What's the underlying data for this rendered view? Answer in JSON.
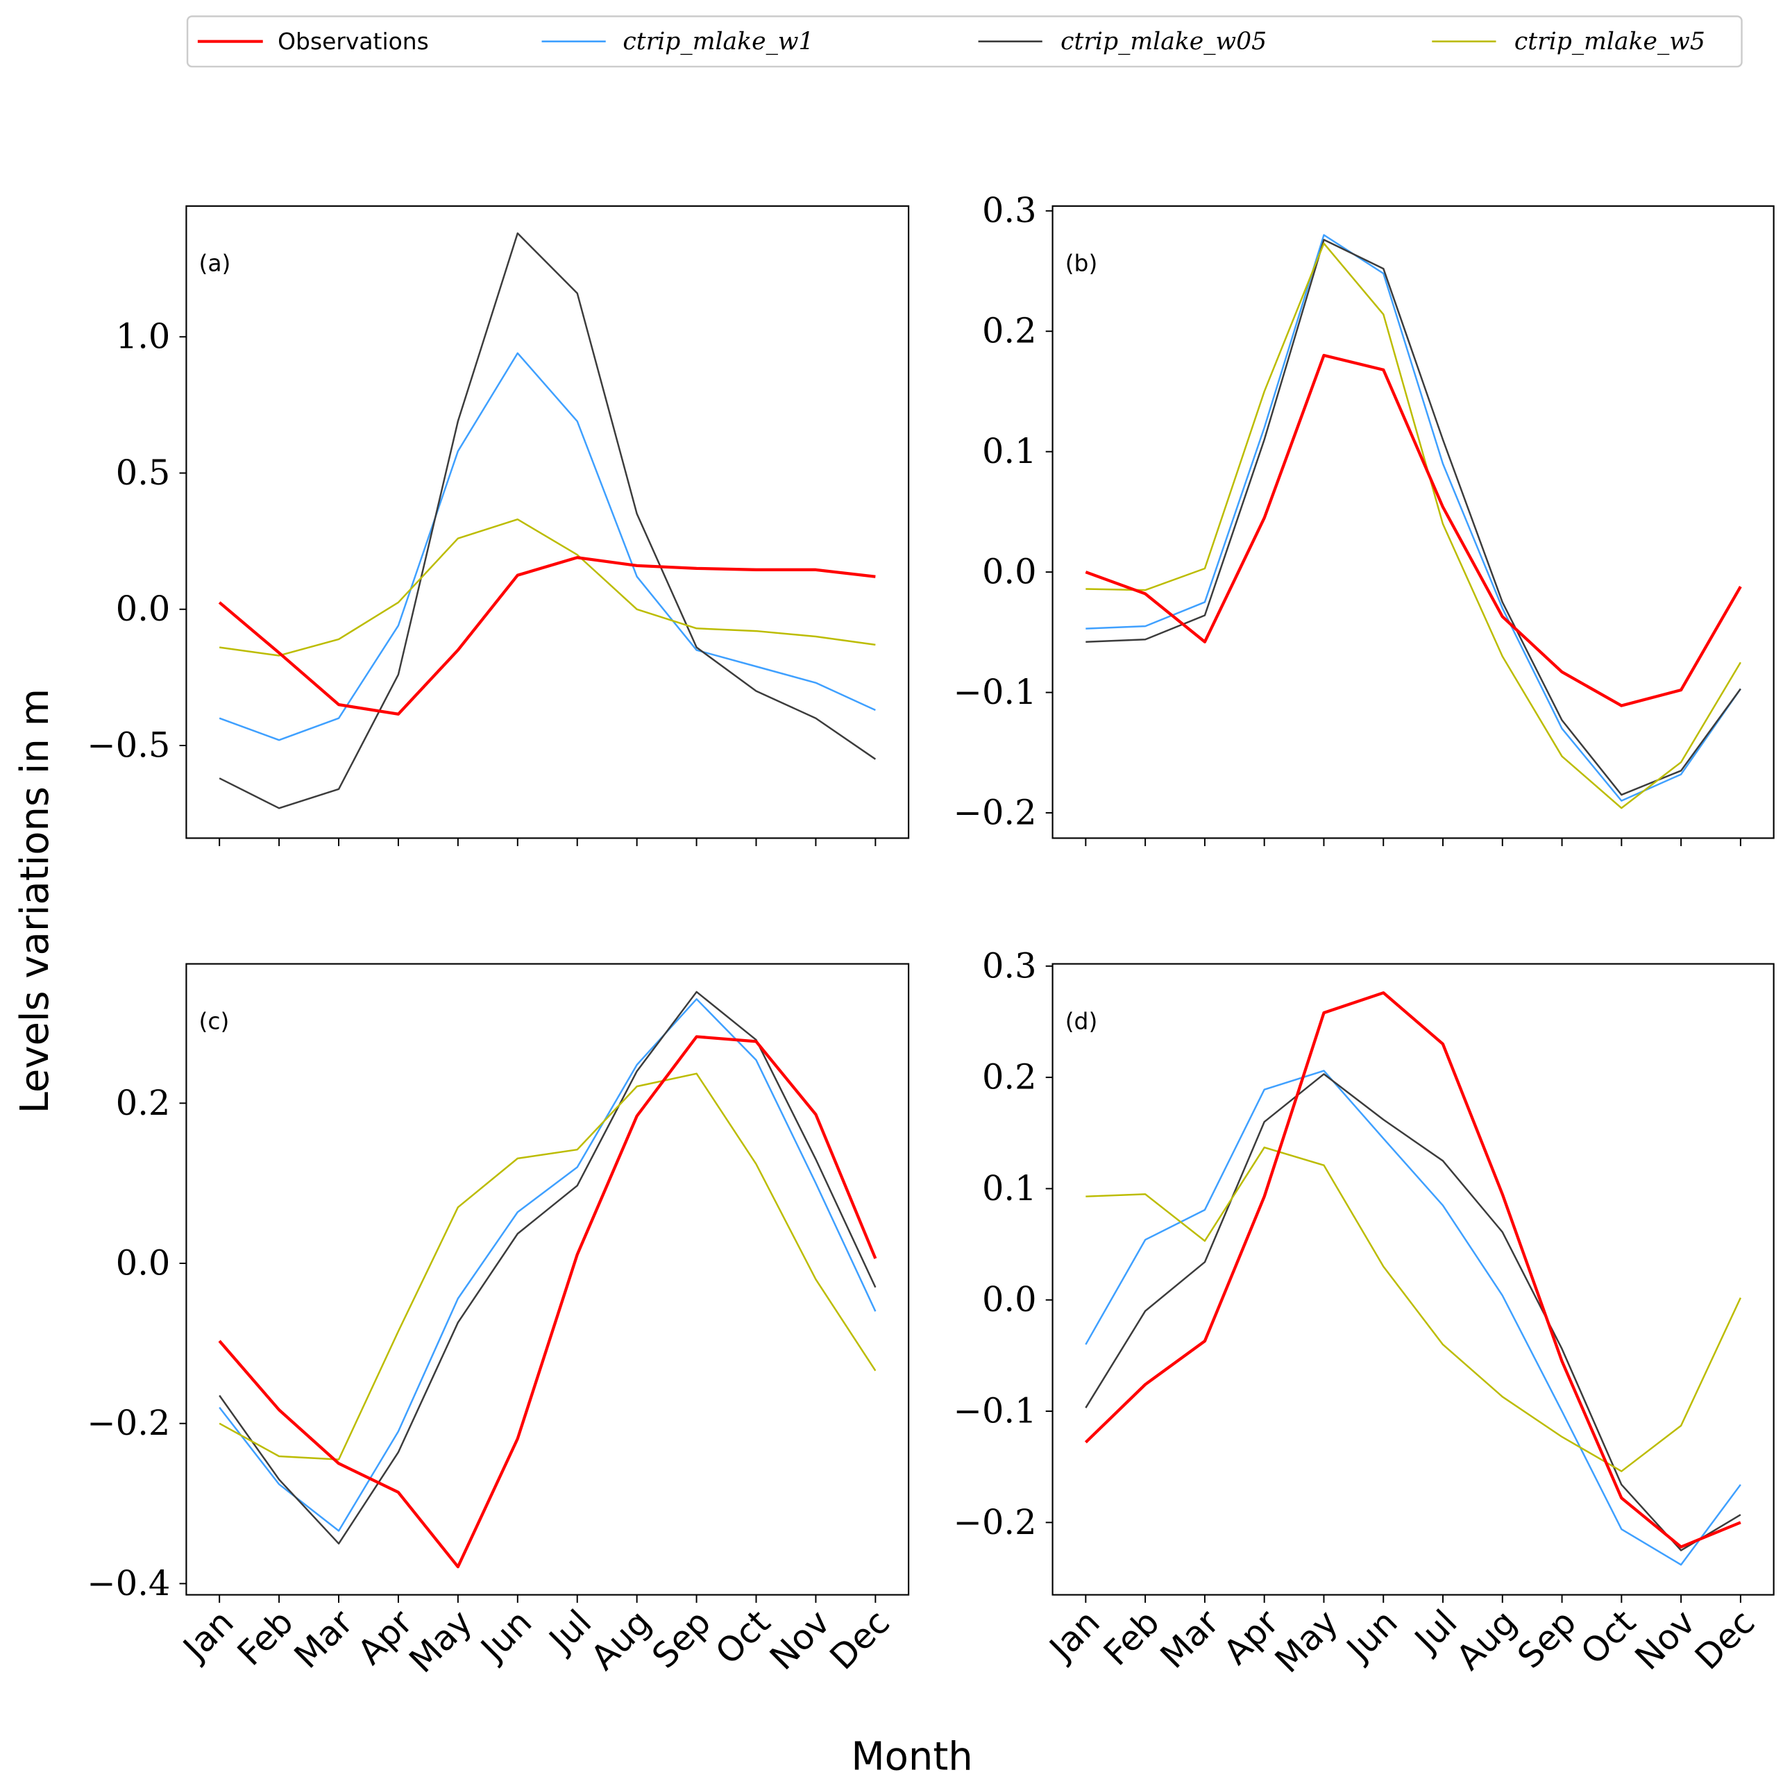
{
  "chart_data": [
    {
      "type": "line",
      "panel_label": "(a)",
      "categories": [
        "Jan",
        "Feb",
        "Mar",
        "Apr",
        "May",
        "Jun",
        "Jul",
        "Aug",
        "Sep",
        "Oct",
        "Nov",
        "Dec"
      ],
      "ylim": [
        -0.84,
        1.48
      ],
      "yticks": [
        -0.5,
        0.0,
        0.5,
        1.0
      ],
      "ytick_labels": [
        "−0.5",
        "0.0",
        "0.5",
        "1.0"
      ],
      "series": [
        {
          "name": "Observations",
          "values": [
            0.025,
            -0.16,
            -0.35,
            -0.385,
            -0.15,
            0.125,
            0.19,
            0.16,
            0.15,
            0.145,
            0.145,
            0.12
          ]
        },
        {
          "name": "ctrip_mlake_w1",
          "values": [
            -0.4,
            -0.48,
            -0.4,
            -0.06,
            0.58,
            0.94,
            0.69,
            0.12,
            -0.15,
            -0.21,
            -0.27,
            -0.37
          ]
        },
        {
          "name": "ctrip_mlake_w05",
          "values": [
            -0.62,
            -0.73,
            -0.66,
            -0.24,
            0.69,
            1.38,
            1.16,
            0.35,
            -0.14,
            -0.3,
            -0.4,
            -0.55
          ]
        },
        {
          "name": "ctrip_mlake_w5",
          "values": [
            -0.14,
            -0.17,
            -0.11,
            0.025,
            0.26,
            0.33,
            0.2,
            0.0,
            -0.07,
            -0.08,
            -0.1,
            -0.13
          ]
        }
      ]
    },
    {
      "type": "line",
      "panel_label": "(b)",
      "categories": [
        "Jan",
        "Feb",
        "Mar",
        "Apr",
        "May",
        "Jun",
        "Jul",
        "Aug",
        "Sep",
        "Oct",
        "Nov",
        "Dec"
      ],
      "ylim": [
        -0.221,
        0.304
      ],
      "yticks": [
        -0.2,
        -0.1,
        0.0,
        0.1,
        0.2,
        0.3
      ],
      "ytick_labels": [
        "−0.2",
        "−0.1",
        "0.0",
        "0.1",
        "0.2",
        "0.3"
      ],
      "series": [
        {
          "name": "Observations",
          "values": [
            0.0,
            -0.018,
            -0.058,
            0.045,
            0.18,
            0.168,
            0.054,
            -0.037,
            -0.083,
            -0.111,
            -0.098,
            -0.012
          ]
        },
        {
          "name": "ctrip_mlake_w1",
          "values": [
            -0.047,
            -0.045,
            -0.025,
            0.12,
            0.28,
            0.248,
            0.09,
            -0.03,
            -0.13,
            -0.19,
            -0.168,
            -0.097
          ]
        },
        {
          "name": "ctrip_mlake_w05",
          "values": [
            -0.058,
            -0.056,
            -0.036,
            0.11,
            0.276,
            0.252,
            0.11,
            -0.025,
            -0.123,
            -0.185,
            -0.165,
            -0.097
          ]
        },
        {
          "name": "ctrip_mlake_w5",
          "values": [
            -0.014,
            -0.015,
            0.003,
            0.15,
            0.273,
            0.214,
            0.04,
            -0.07,
            -0.153,
            -0.196,
            -0.158,
            -0.075
          ]
        }
      ]
    },
    {
      "type": "line",
      "panel_label": "(c)",
      "categories": [
        "Jan",
        "Feb",
        "Mar",
        "Apr",
        "May",
        "Jun",
        "Jul",
        "Aug",
        "Sep",
        "Oct",
        "Nov",
        "Dec"
      ],
      "ylim": [
        -0.414,
        0.374
      ],
      "yticks": [
        -0.4,
        -0.2,
        0.0,
        0.2
      ],
      "ytick_labels": [
        "−0.4",
        "−0.2",
        "0.0",
        "0.2"
      ],
      "series": [
        {
          "name": "Observations",
          "values": [
            -0.097,
            -0.183,
            -0.25,
            -0.286,
            -0.379,
            -0.219,
            0.011,
            0.184,
            0.283,
            0.277,
            0.186,
            0.006
          ]
        },
        {
          "name": "ctrip_mlake_w1",
          "values": [
            -0.18,
            -0.276,
            -0.334,
            -0.21,
            -0.044,
            0.064,
            0.12,
            0.248,
            0.33,
            0.254,
            0.1,
            -0.06
          ]
        },
        {
          "name": "ctrip_mlake_w05",
          "values": [
            -0.165,
            -0.27,
            -0.35,
            -0.236,
            -0.074,
            0.037,
            0.097,
            0.24,
            0.339,
            0.279,
            0.13,
            -0.03
          ]
        },
        {
          "name": "ctrip_mlake_w5",
          "values": [
            -0.2,
            -0.241,
            -0.245,
            -0.085,
            0.07,
            0.131,
            0.142,
            0.221,
            0.237,
            0.124,
            -0.02,
            -0.134
          ]
        }
      ]
    },
    {
      "type": "line",
      "panel_label": "(d)",
      "categories": [
        "Jan",
        "Feb",
        "Mar",
        "Apr",
        "May",
        "Jun",
        "Jul",
        "Aug",
        "Sep",
        "Oct",
        "Nov",
        "Dec"
      ],
      "ylim": [
        -0.265,
        0.302
      ],
      "yticks": [
        -0.2,
        -0.1,
        0.0,
        0.1,
        0.2,
        0.3
      ],
      "ytick_labels": [
        "−0.2",
        "−0.1",
        "0.0",
        "0.1",
        "0.2",
        "0.3"
      ],
      "series": [
        {
          "name": "Observations",
          "values": [
            -0.128,
            -0.076,
            -0.037,
            0.093,
            0.258,
            0.276,
            0.23,
            0.095,
            -0.055,
            -0.178,
            -0.222,
            -0.2
          ]
        },
        {
          "name": "ctrip_mlake_w1",
          "values": [
            -0.04,
            0.054,
            0.081,
            0.189,
            0.206,
            0.145,
            0.085,
            0.004,
            -0.1,
            -0.206,
            -0.238,
            -0.166
          ]
        },
        {
          "name": "ctrip_mlake_w05",
          "values": [
            -0.097,
            -0.01,
            0.034,
            0.16,
            0.203,
            0.162,
            0.125,
            0.061,
            -0.044,
            -0.166,
            -0.225,
            -0.193
          ]
        },
        {
          "name": "ctrip_mlake_w5",
          "values": [
            0.093,
            0.095,
            0.053,
            0.137,
            0.121,
            0.03,
            -0.04,
            -0.087,
            -0.123,
            -0.154,
            -0.113,
            0.002
          ]
        }
      ]
    }
  ],
  "legend": {
    "placement": "top",
    "entries": [
      {
        "label": "Observations",
        "color": "#ff0000"
      },
      {
        "label": "ctrip_mlake_w1",
        "color": "#3fa0ff"
      },
      {
        "label": "ctrip_mlake_w05",
        "color": "#3c3c3c"
      },
      {
        "label": "ctrip_mlake_w5",
        "color": "#bcbc00"
      }
    ]
  },
  "xlabel": "Month",
  "ylabel": "Levels variations in m"
}
